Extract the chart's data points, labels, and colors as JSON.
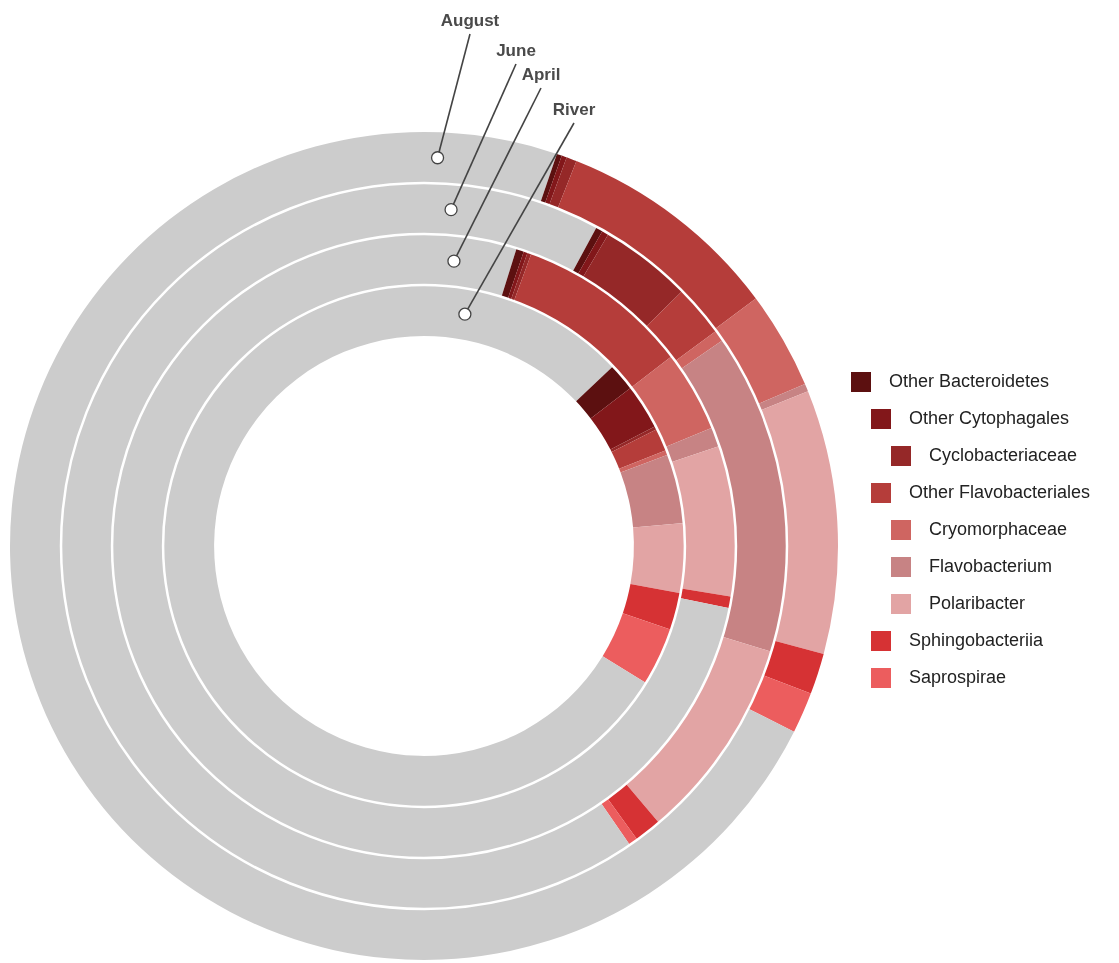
{
  "chart_data": {
    "type": "donut",
    "categories": [
      null,
      "Other Bacteroidetes",
      "Other Cytophagales",
      "Cyclobacteriaceae",
      "Other Flavobacteriales",
      "Cryomorphaceae",
      "Flavobacterium",
      "Polaribacter",
      "Sphingobacteriia",
      "Saprospirae",
      null
    ],
    "colors": [
      "#cccccc",
      "#5c1010",
      "#82171a",
      "#952828",
      "#b53d3a",
      "#cf6561",
      "#c78384",
      "#e2a4a4",
      "#d63234",
      "#ec5d5e",
      "#cccccc"
    ],
    "series": [
      {
        "name": "August",
        "values": [
          5.2,
          0.2,
          0.2,
          0.4,
          8.8,
          3.8,
          0.3,
          10.3,
          1.6,
          1.6,
          67.6
        ]
      },
      {
        "name": "June",
        "values": [
          7.9,
          0.3,
          0.3,
          4.1,
          2.3,
          0.5,
          14.3,
          9.1,
          1.2,
          0.4,
          59.6
        ]
      },
      {
        "name": "April",
        "values": [
          4.8,
          0.4,
          0.2,
          0.2,
          9.0,
          4.2,
          1.0,
          7.8,
          0.6,
          0,
          71.8
        ]
      },
      {
        "name": "River",
        "values": [
          12.9,
          1.7,
          2.8,
          0.2,
          1.4,
          0.3,
          4.3,
          4.3,
          2.3,
          3.6,
          66.2
        ]
      }
    ],
    "legend": "right"
  }
}
